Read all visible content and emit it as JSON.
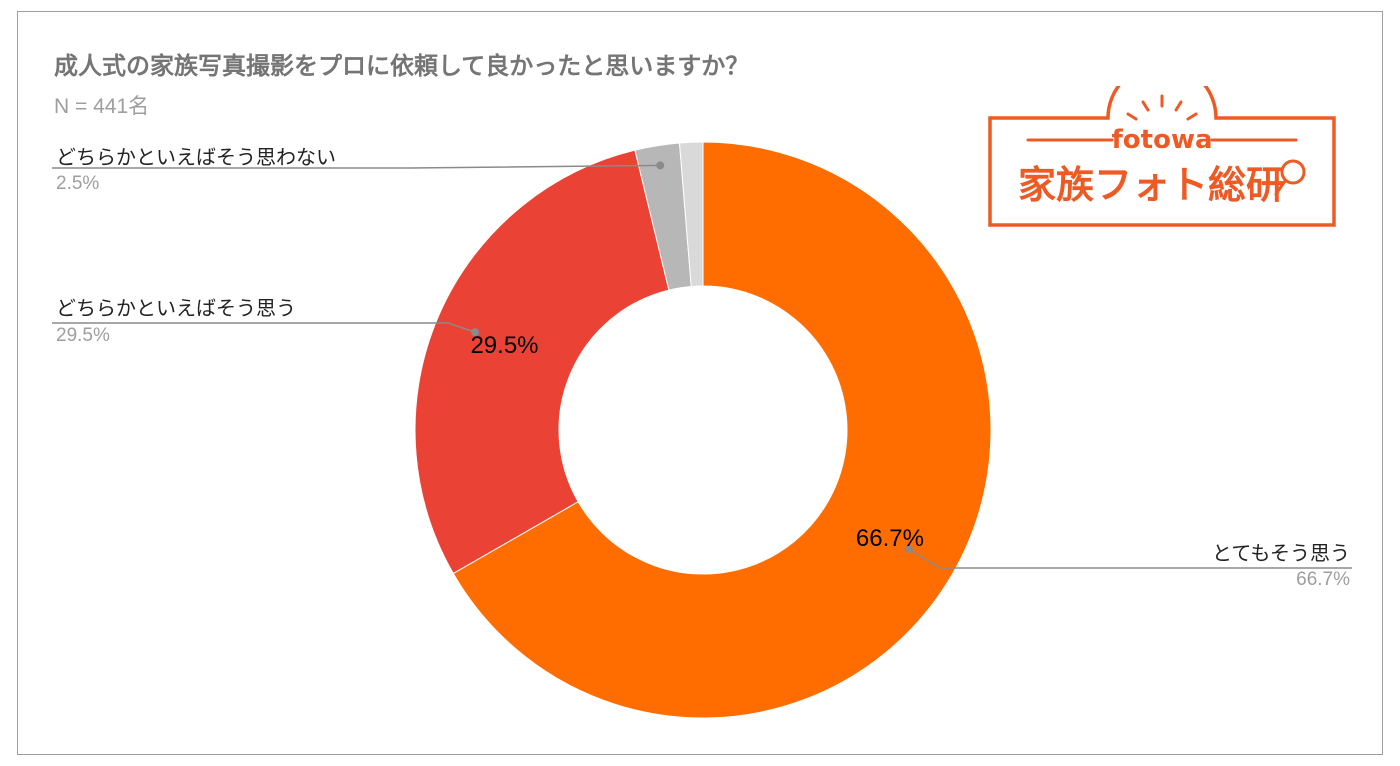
{
  "title": "成人式の家族写真撮影をプロに依頼して良かったと思いますか？",
  "subtitle": "N = 441名",
  "logo": {
    "brand": "fotowa",
    "name": "家族フォト総研",
    "color": "#ee5a24",
    "icon": "magnifier-icon"
  },
  "chart_data": {
    "type": "pie",
    "donut": true,
    "title": "成人式の家族写真撮影をプロに依頼して良かったと思いますか？",
    "subtitle": "N = 441名",
    "slices": [
      {
        "label": "とてもそう思う",
        "value": 66.7,
        "display": "66.7%",
        "color": "#ff6d00",
        "inner_label": "66.7%"
      },
      {
        "label": "どちらかといえばそう思う",
        "value": 29.5,
        "display": "29.5%",
        "color": "#ea4335",
        "inner_label": "29.5%"
      },
      {
        "label": "どちらかといえばそう思わない",
        "value": 2.5,
        "display": "2.5%",
        "color": "#b7b7b7",
        "inner_label": ""
      },
      {
        "label": "",
        "value": 1.3,
        "display": "",
        "color": "#d9d9d9",
        "inner_label": ""
      }
    ]
  }
}
